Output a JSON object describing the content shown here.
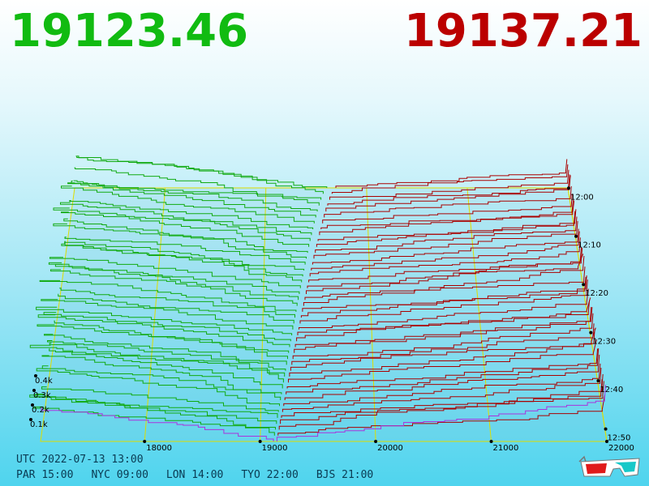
{
  "header": {
    "bid": {
      "value": "19123.46",
      "color": "#11bb11"
    },
    "ask": {
      "value": "19137.21",
      "color": "#bb0000"
    }
  },
  "footer": {
    "utc_label": "UTC",
    "utc_value": "2022-07-13 13:00",
    "timezones": [
      {
        "label": "PAR",
        "time": "15:00"
      },
      {
        "label": "NYC",
        "time": "09:00"
      },
      {
        "label": "LON",
        "time": "14:00"
      },
      {
        "label": "TYO",
        "time": "22:00"
      },
      {
        "label": "BJS",
        "time": "21:00"
      }
    ]
  },
  "icons": {
    "view_toggle": "3d-glasses-icon"
  },
  "chart_data": {
    "type": "area",
    "x_ticks": [
      18000,
      19000,
      20000,
      21000,
      22000
    ],
    "x_range": [
      17100,
      22000
    ],
    "volume_ticks": [
      "0.1k",
      "0.2k",
      "0.3k",
      "0.4k"
    ],
    "volume_range": [
      0,
      0.5
    ],
    "time_ticks": [
      "12:00",
      "12:10",
      "12:20",
      "12:30",
      "12:40",
      "12:50"
    ],
    "bid_color": "#11aa11",
    "ask_color": "#aa0000",
    "latest_color": "#aa33dd",
    "grid_color": "#dddd00",
    "bid_price": 19123.46,
    "ask_price": 19137.21,
    "series": []
  }
}
